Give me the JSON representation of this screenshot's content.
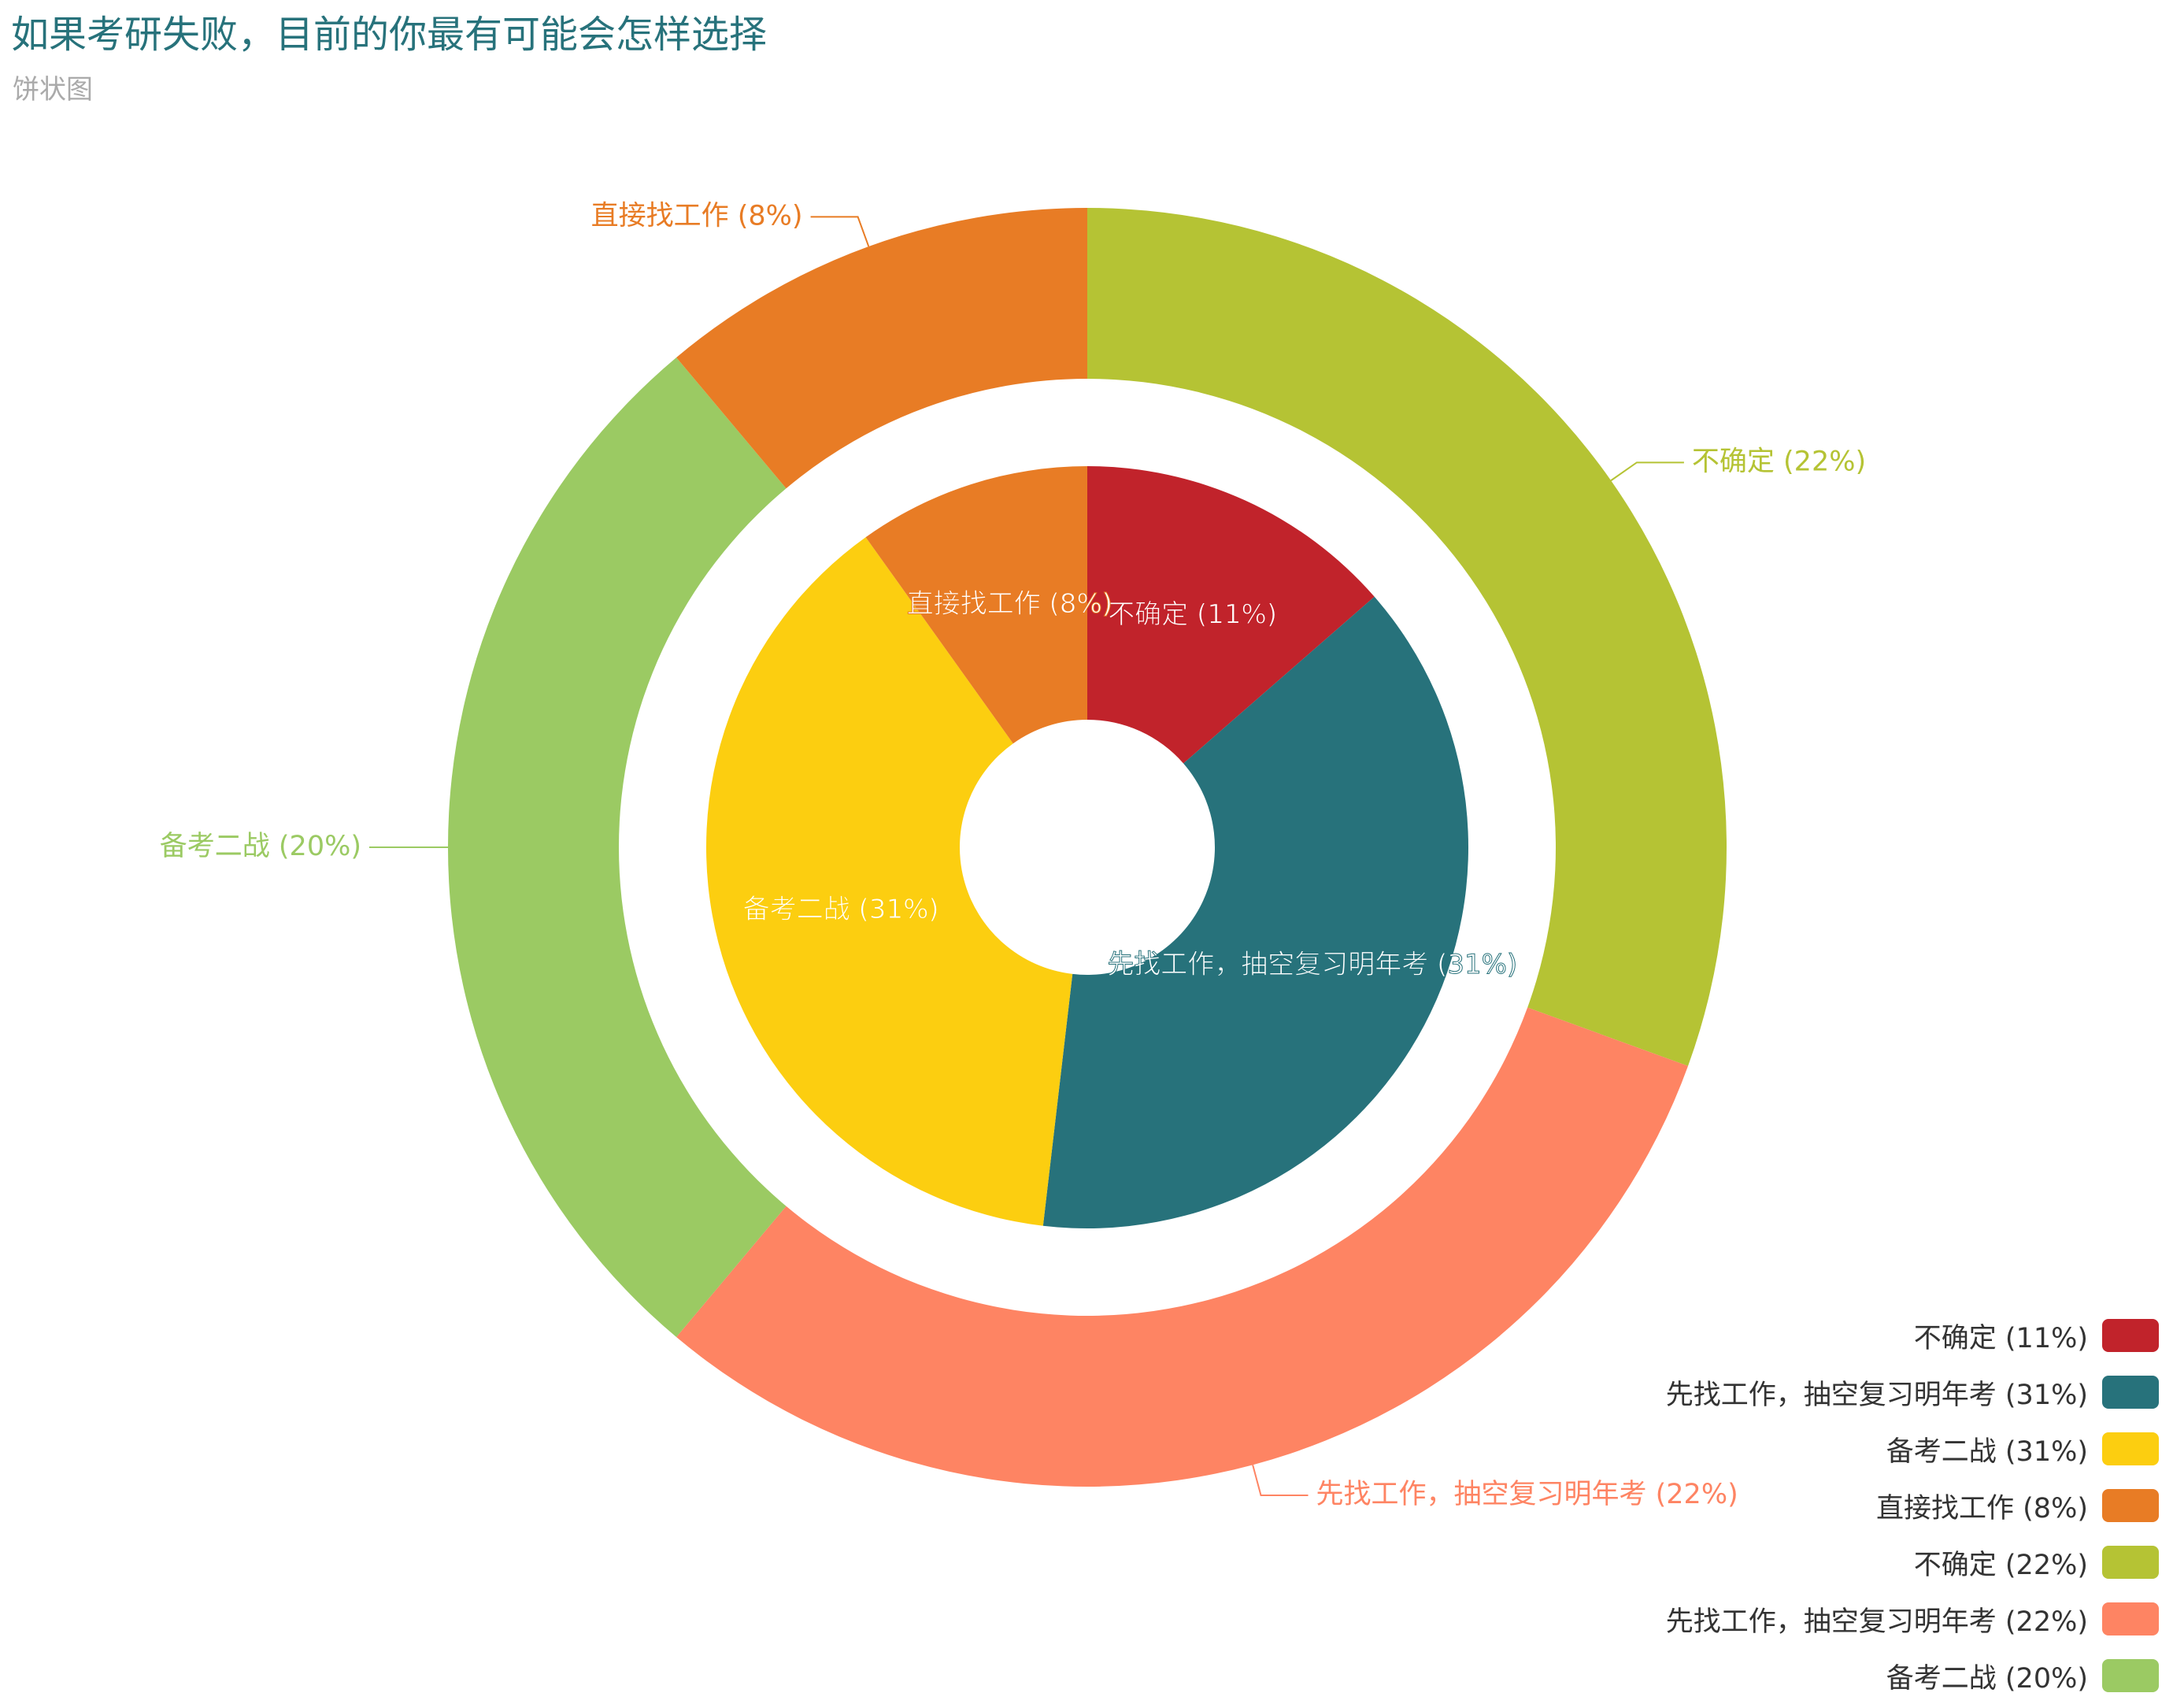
{
  "title": "如果考研失败，目前的你最有可能会怎样选择",
  "subtitle": "饼状图",
  "chart_data": {
    "type": "pie",
    "title": "如果考研失败，目前的你最有可能会怎样选择",
    "subtitle": "饼状图",
    "rings": [
      {
        "ring": "inner",
        "label_position": "inside",
        "slices": [
          {
            "name": "不确定",
            "percent": 11,
            "label": "不确定 (11%)",
            "color": "#c1232b"
          },
          {
            "name": "先找工作，抽空复习明年考",
            "percent": 31,
            "label": "先找工作，抽空复习明年考 (31%)",
            "color": "#27727b"
          },
          {
            "name": "备考二战",
            "percent": 31,
            "label": "备考二战 (31%)",
            "color": "#fcce10"
          },
          {
            "name": "直接找工作",
            "percent": 8,
            "label": "直接找工作 (8%)",
            "color": "#e87c25"
          }
        ]
      },
      {
        "ring": "outer",
        "label_position": "outside",
        "slices": [
          {
            "name": "不确定",
            "percent": 22,
            "label": "不确定 (22%)",
            "color": "#b5c334"
          },
          {
            "name": "先找工作，抽空复习明年考",
            "percent": 22,
            "label": "先找工作，抽空复习明年考 (22%)",
            "color": "#fe8463"
          },
          {
            "name": "备考二战",
            "percent": 20,
            "label": "备考二战 (20%)",
            "color": "#9bca63"
          },
          {
            "name": "直接找工作",
            "percent": 8,
            "label": "直接找工作 (8%)",
            "color": "#e87c25"
          }
        ]
      }
    ],
    "legend": {
      "position": "bottom-right",
      "items": [
        {
          "label": "不确定 (11%)",
          "color": "#c1232b"
        },
        {
          "label": "先找工作，抽空复习明年考 (31%)",
          "color": "#27727b"
        },
        {
          "label": "备考二战 (31%)",
          "color": "#fcce10"
        },
        {
          "label": "直接找工作 (8%)",
          "color": "#e87c25"
        },
        {
          "label": "不确定 (22%)",
          "color": "#b5c334"
        },
        {
          "label": "先找工作，抽空复习明年考 (22%)",
          "color": "#fe8463"
        },
        {
          "label": "备考二战 (20%)",
          "color": "#9bca63"
        }
      ]
    }
  }
}
